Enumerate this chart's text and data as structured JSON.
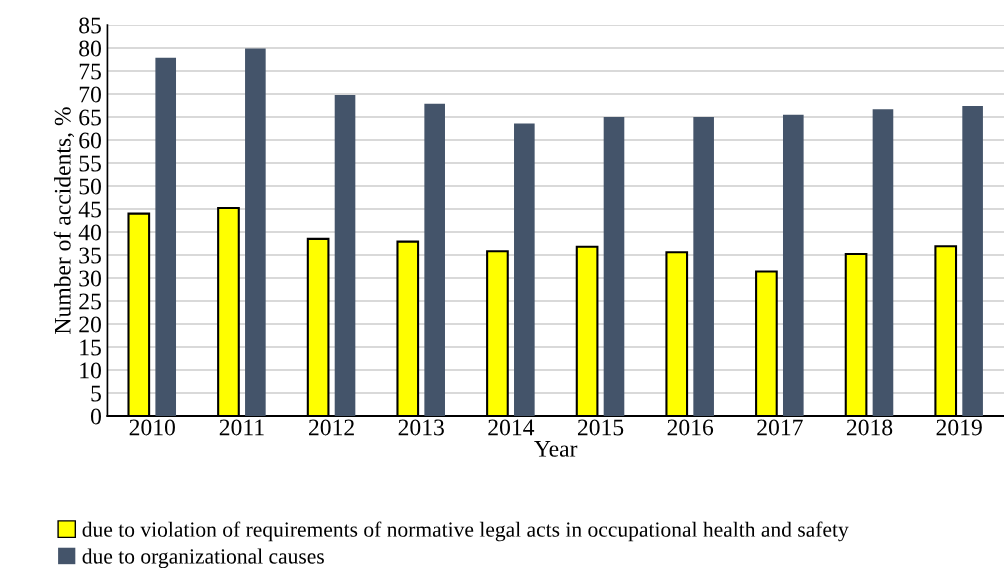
{
  "chart_data": {
    "type": "bar",
    "xlabel": "Year",
    "ylabel": "Number of accidents, %",
    "categories": [
      "2010",
      "2011",
      "2012",
      "2013",
      "2014",
      "2015",
      "2016",
      "2017",
      "2018",
      "2019"
    ],
    "series": [
      {
        "name": "due to violation of requirements of normative legal acts in occupational health and safety",
        "color": "#ffff00",
        "values": [
          44,
          45.2,
          38.5,
          37.9,
          35.8,
          36.8,
          35.6,
          31.4,
          35.2,
          36.9
        ]
      },
      {
        "name": "due to organizational causes",
        "color": "#44546a",
        "values": [
          77.9,
          79.9,
          69.8,
          67.9,
          63.6,
          65.0,
          65.0,
          65.5,
          66.7,
          67.4
        ]
      }
    ],
    "ylim": [
      0,
      85
    ],
    "yticks": [
      0,
      5,
      10,
      15,
      20,
      25,
      30,
      35,
      40,
      45,
      50,
      55,
      60,
      65,
      70,
      75,
      80,
      85
    ],
    "grid": "y",
    "legend": "bottom"
  }
}
